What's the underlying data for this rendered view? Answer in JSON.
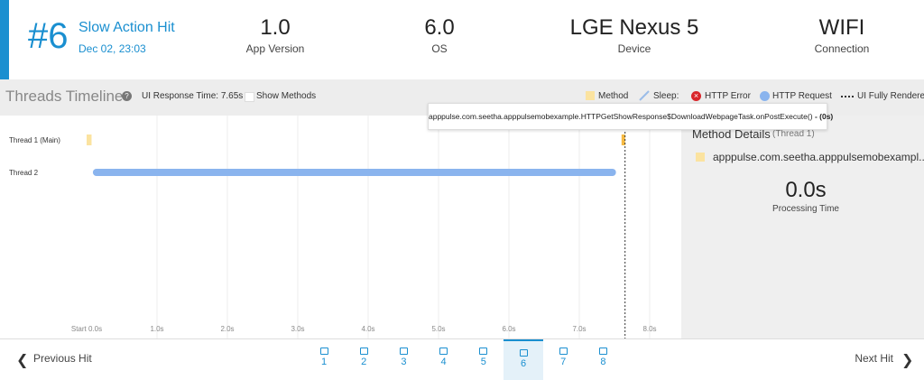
{
  "header": {
    "hit_number": "#6",
    "title": "Slow Action Hit",
    "date": "Dec 02, 23:03",
    "stats": [
      {
        "value": "1.0",
        "label": "App Version"
      },
      {
        "value": "6.0",
        "label": "OS"
      },
      {
        "value": "LGE Nexus 5",
        "label": "Device"
      },
      {
        "value": "WIFI",
        "label": "Connection"
      }
    ]
  },
  "toolbar": {
    "title": "Threads Timeline",
    "ui_response": "UI Response Time: 7.65s",
    "show_methods": "Show Methods",
    "legend": [
      "Method",
      "Sleep:",
      "HTTP Error",
      "HTTP Request",
      "UI Fully Rendered"
    ]
  },
  "tooltip": {
    "method": "apppulse.com.seetha.apppulsemobexample.HTTPGetShowResponse$DownloadWebpageTask.onPostExecute()",
    "duration": "- (0s)"
  },
  "timeline": {
    "ticks": [
      {
        "value": 0,
        "label": "Start 0.0s"
      },
      {
        "value": 1,
        "label": "1.0s"
      },
      {
        "value": 2,
        "label": "2.0s"
      },
      {
        "value": 3,
        "label": "3.0s"
      },
      {
        "value": 4,
        "label": "4.0s"
      },
      {
        "value": 5,
        "label": "5.0s"
      },
      {
        "value": 6,
        "label": "6.0s"
      },
      {
        "value": 7,
        "label": "7.0s"
      },
      {
        "value": 8,
        "label": "8.0s"
      }
    ],
    "ui_rendered_at": 7.65,
    "threads": [
      {
        "name": "Thread 1 (Main)",
        "methods": [
          {
            "start": 0,
            "end": 0.07
          },
          {
            "start": 7.6,
            "end": 7.65
          }
        ],
        "requests": []
      },
      {
        "name": "Thread 2",
        "methods": [],
        "requests": [
          {
            "start": 0.14,
            "end": 7.47
          }
        ]
      }
    ]
  },
  "details": {
    "title": "Method Details",
    "thread": "(Thread 1)",
    "method": "apppulse.com.seetha.apppulsemobexampl...",
    "time": "0.0s",
    "time_label": "Processing Time"
  },
  "nav": {
    "previous": "Previous Hit",
    "next": "Next Hit",
    "pages": [
      "1",
      "2",
      "3",
      "4",
      "5",
      "6",
      "7",
      "8"
    ],
    "current": 5
  }
}
